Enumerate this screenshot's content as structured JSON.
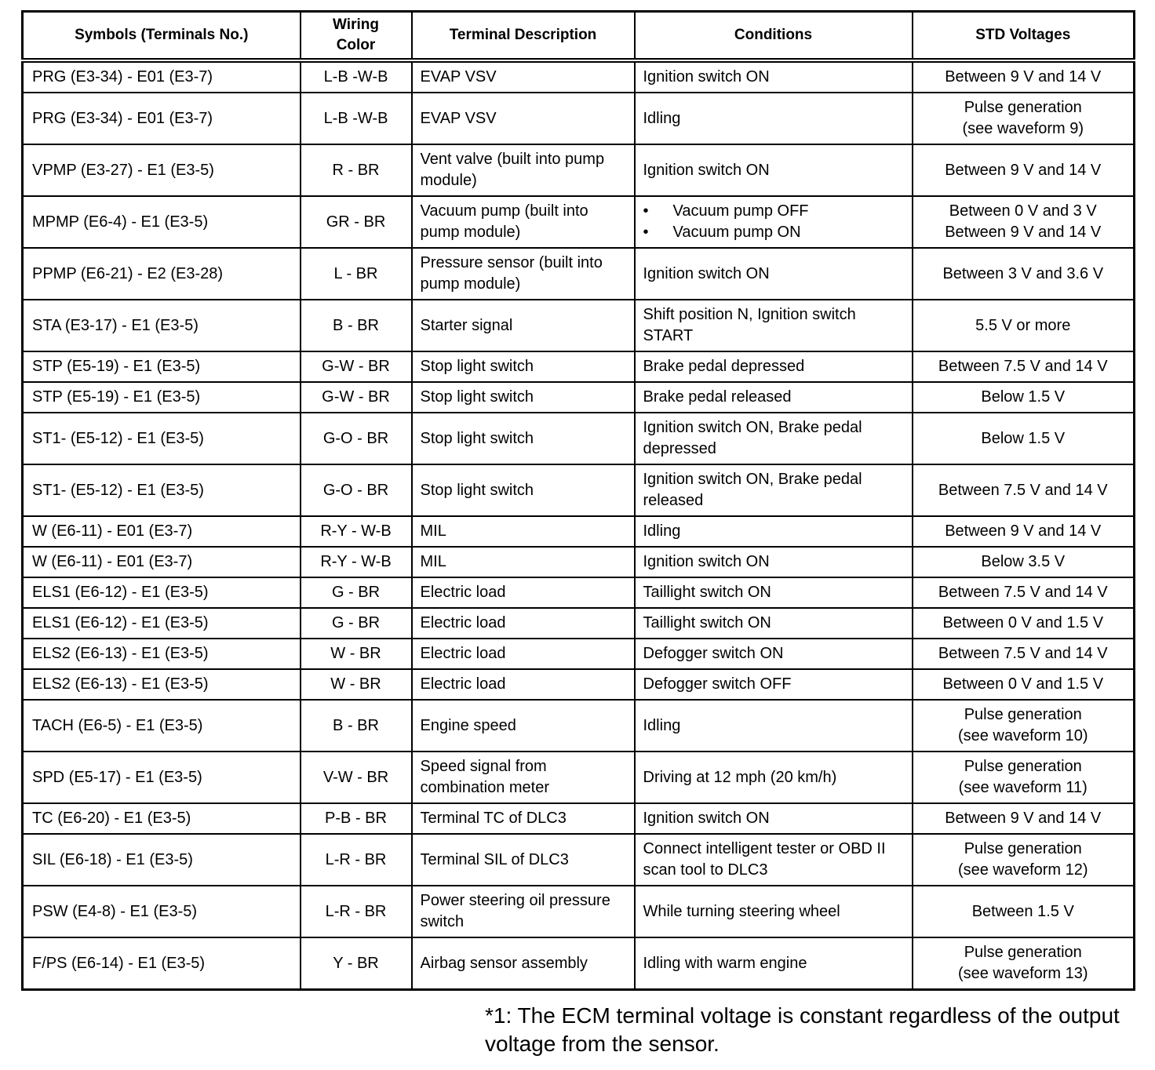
{
  "table": {
    "headers": [
      "Symbols (Terminals No.)",
      "Wiring Color",
      "Terminal Description",
      "Conditions",
      "STD Voltages"
    ],
    "rows": [
      {
        "symbol": "PRG (E3-34) - E01 (E3-7)",
        "wiring": "L-B -W-B",
        "description": "EVAP VSV",
        "conditions": [
          "Ignition switch ON"
        ],
        "voltage": [
          "Between 9 V and 14 V"
        ]
      },
      {
        "symbol": "PRG (E3-34) - E01 (E3-7)",
        "wiring": "L-B -W-B",
        "description": "EVAP VSV",
        "conditions": [
          "Idling"
        ],
        "voltage": [
          "Pulse generation",
          "(see waveform 9)"
        ]
      },
      {
        "symbol": "VPMP (E3-27) - E1 (E3-5)",
        "wiring": "R - BR",
        "description": "Vent valve (built into pump module)",
        "conditions": [
          "Ignition switch ON"
        ],
        "voltage": [
          "Between 9 V and 14 V"
        ]
      },
      {
        "symbol": "MPMP (E6-4) - E1 (E3-5)",
        "wiring": "GR - BR",
        "description": "Vacuum pump (built into pump module)",
        "conditions_bullets": [
          "Vacuum pump OFF",
          "Vacuum pump ON"
        ],
        "voltage": [
          "Between 0 V and 3 V",
          "Between 9 V and 14 V"
        ]
      },
      {
        "symbol": "PPMP (E6-21) - E2 (E3-28)",
        "wiring": "L - BR",
        "description": "Pressure sensor (built into pump module)",
        "conditions": [
          "Ignition switch ON"
        ],
        "voltage": [
          "Between 3 V and 3.6 V"
        ]
      },
      {
        "symbol": "STA (E3-17) - E1 (E3-5)",
        "wiring": "B - BR",
        "description": "Starter signal",
        "conditions": [
          "Shift position N, Ignition switch START"
        ],
        "voltage": [
          "5.5 V or more"
        ]
      },
      {
        "symbol": "STP (E5-19) - E1 (E3-5)",
        "wiring": "G-W - BR",
        "description": "Stop light switch",
        "conditions": [
          "Brake pedal depressed"
        ],
        "voltage": [
          "Between 7.5 V and 14 V"
        ]
      },
      {
        "symbol": "STP (E5-19) - E1 (E3-5)",
        "wiring": "G-W - BR",
        "description": "Stop light switch",
        "conditions": [
          "Brake pedal released"
        ],
        "voltage": [
          "Below 1.5 V"
        ]
      },
      {
        "symbol": "ST1- (E5-12) - E1 (E3-5)",
        "wiring": "G-O - BR",
        "description": "Stop light switch",
        "conditions": [
          "Ignition switch ON, Brake pedal depressed"
        ],
        "voltage": [
          "Below 1.5 V"
        ]
      },
      {
        "symbol": "ST1- (E5-12) - E1 (E3-5)",
        "wiring": "G-O - BR",
        "description": "Stop light switch",
        "conditions": [
          "Ignition switch ON, Brake pedal released"
        ],
        "voltage": [
          "Between 7.5 V and 14 V"
        ]
      },
      {
        "symbol": "W (E6-11) - E01 (E3-7)",
        "wiring": "R-Y - W-B",
        "description": "MIL",
        "conditions": [
          "Idling"
        ],
        "voltage": [
          "Between 9 V and 14 V"
        ]
      },
      {
        "symbol": "W (E6-11) - E01 (E3-7)",
        "wiring": "R-Y - W-B",
        "description": "MIL",
        "conditions": [
          "Ignition switch ON"
        ],
        "voltage": [
          "Below 3.5 V"
        ]
      },
      {
        "symbol": "ELS1 (E6-12) - E1 (E3-5)",
        "wiring": "G - BR",
        "description": "Electric load",
        "conditions": [
          "Taillight switch ON"
        ],
        "voltage": [
          "Between 7.5 V and 14 V"
        ]
      },
      {
        "symbol": "ELS1 (E6-12) - E1 (E3-5)",
        "wiring": "G - BR",
        "description": "Electric load",
        "conditions": [
          "Taillight switch ON"
        ],
        "voltage": [
          "Between 0 V and 1.5 V"
        ]
      },
      {
        "symbol": "ELS2 (E6-13) - E1 (E3-5)",
        "wiring": "W - BR",
        "description": "Electric load",
        "conditions": [
          "Defogger switch ON"
        ],
        "voltage": [
          "Between 7.5 V and 14 V"
        ]
      },
      {
        "symbol": "ELS2 (E6-13) - E1 (E3-5)",
        "wiring": "W - BR",
        "description": "Electric load",
        "conditions": [
          "Defogger switch OFF"
        ],
        "voltage": [
          "Between 0 V and 1.5 V"
        ]
      },
      {
        "symbol": "TACH (E6-5) - E1 (E3-5)",
        "wiring": "B - BR",
        "description": "Engine speed",
        "conditions": [
          "Idling"
        ],
        "voltage": [
          "Pulse generation",
          "(see waveform 10)"
        ]
      },
      {
        "symbol": "SPD (E5-17) - E1 (E3-5)",
        "wiring": "V-W - BR",
        "description": "Speed signal from combination meter",
        "conditions": [
          "Driving at 12 mph (20 km/h)"
        ],
        "voltage": [
          "Pulse generation",
          "(see waveform 11)"
        ]
      },
      {
        "symbol": "TC (E6-20) - E1 (E3-5)",
        "wiring": "P-B - BR",
        "description": "Terminal TC of DLC3",
        "conditions": [
          "Ignition switch ON"
        ],
        "voltage": [
          "Between 9 V and 14 V"
        ]
      },
      {
        "symbol": "SIL (E6-18) - E1 (E3-5)",
        "wiring": "L-R - BR",
        "description": "Terminal SIL of DLC3",
        "conditions": [
          "Connect intelligent tester or OBD II scan tool to DLC3"
        ],
        "voltage": [
          "Pulse generation",
          "(see waveform 12)"
        ]
      },
      {
        "symbol": "PSW (E4-8) - E1 (E3-5)",
        "wiring": "L-R - BR",
        "description": "Power steering oil pressure switch",
        "conditions": [
          "While turning steering wheel"
        ],
        "voltage": [
          "Between 1.5 V"
        ]
      },
      {
        "symbol": "F/PS (E6-14) - E1 (E3-5)",
        "wiring": "Y - BR",
        "description": "Airbag sensor assembly",
        "conditions": [
          "Idling with warm engine"
        ],
        "voltage": [
          "Pulse generation",
          "(see waveform 13)"
        ]
      }
    ]
  },
  "footnote": "*1: The ECM terminal voltage is constant regardless of the output voltage from the sensor."
}
